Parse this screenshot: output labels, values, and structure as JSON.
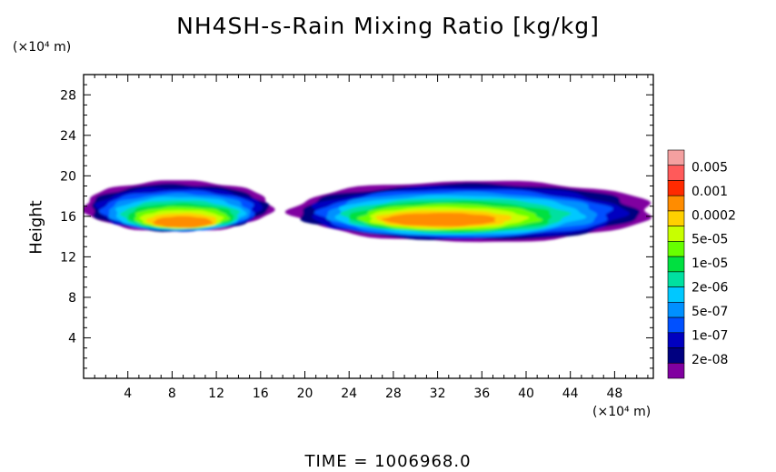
{
  "chart": {
    "title": "NH4SH-s-Rain Mixing Ratio [kg/kg]",
    "y_unit": "(×10⁴ m)",
    "x_unit": "(×10⁴ m)",
    "ylabel": "Height",
    "time_label": "TIME = 1006968.0"
  },
  "chart_data": {
    "type": "heatmap",
    "title": "NH4SH-s-Rain Mixing Ratio [kg/kg]",
    "xlabel": "",
    "ylabel": "Height",
    "xlim": [
      0,
      51.5
    ],
    "ylim": [
      0,
      30
    ],
    "x_ticks": [
      4,
      8,
      12,
      16,
      20,
      24,
      28,
      32,
      36,
      40,
      44,
      48
    ],
    "y_ticks": [
      4,
      8,
      12,
      16,
      20,
      24,
      28
    ],
    "colorbar": {
      "labels": [
        "0.005",
        "0.001",
        "0.0002",
        "5e-05",
        "1e-05",
        "2e-06",
        "5e-07",
        "1e-07",
        "2e-08"
      ],
      "colors": [
        "#f4a0a0",
        "#ff5a5a",
        "#ff2a00",
        "#ff8c00",
        "#ffd000",
        "#c8ff00",
        "#66ff00",
        "#00e040",
        "#00e0a0",
        "#00c8ff",
        "#0090ff",
        "#0050ff",
        "#0000c0",
        "#000080",
        "#8000a0"
      ]
    },
    "regions": [
      {
        "x_range": [
          0,
          17
        ],
        "y_range": [
          14.5,
          19.5
        ],
        "peak": "0.0002",
        "peak_x": 9,
        "peak_y": 15.3
      },
      {
        "x_range": [
          19,
          51.5
        ],
        "y_range": [
          13.5,
          19.5
        ],
        "peak": "0.0002",
        "peak_x": 32,
        "peak_y": 15.6
      }
    ]
  }
}
